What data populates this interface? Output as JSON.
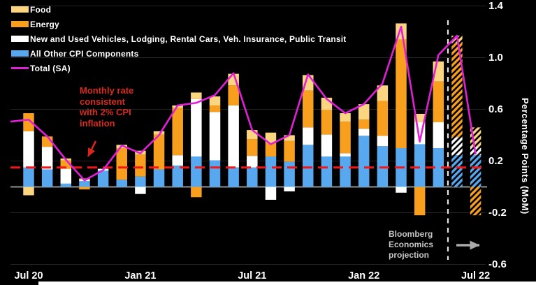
{
  "legend": {
    "items": [
      {
        "label": "Food",
        "color": "#fcd581",
        "type": "bar"
      },
      {
        "label": "Energy",
        "color": "#f8a01e",
        "type": "bar"
      },
      {
        "label": "New and Used Vehicles, Lodging, Rental Cars, Veh. Insurance, Public Transit",
        "color": "#ffffff",
        "type": "bar"
      },
      {
        "label": "All Other CPI Components",
        "color": "#58a8f0",
        "type": "bar"
      },
      {
        "label": "Total (SA)",
        "color": "#e11fd7",
        "type": "line"
      }
    ]
  },
  "annotations": {
    "target_note": {
      "text": "Monthly rate\nconsistent\nwith 2% CPI\ninflation",
      "color": "#d62b1e"
    },
    "projection_note": {
      "text": "Bloomberg\nEconomics\nprojection",
      "color": "#c6c6c6"
    }
  },
  "axis": {
    "ylabel": "Percentage Points (MoM)",
    "yticks": [
      {
        "label": "1.4",
        "value": 1.4
      },
      {
        "label": "1.0",
        "value": 1.0
      },
      {
        "label": "0.6",
        "value": 0.6
      },
      {
        "label": "0.2",
        "value": 0.2
      },
      {
        "label": "-0.2",
        "value": -0.2
      },
      {
        "label": "-0.6",
        "value": -0.6
      }
    ],
    "xticks": [
      {
        "label": "Jul 20",
        "month_index": 0
      },
      {
        "label": "Jan 21",
        "month_index": 6
      },
      {
        "label": "Jul 21",
        "month_index": 12
      },
      {
        "label": "Jan 22",
        "month_index": 18
      },
      {
        "label": "Jul 22",
        "month_index": 24
      }
    ]
  },
  "chart_data": {
    "type": "bar",
    "subtype": "stacked-bars-with-total-line",
    "ylabel": "Percentage Points (MoM)",
    "ylim": [
      -0.6,
      1.4
    ],
    "months": [
      "Jul 20",
      "Aug 20",
      "Sep 20",
      "Oct 20",
      "Nov 20",
      "Dec 20",
      "Jan 21",
      "Feb 21",
      "Mar 21",
      "Apr 21",
      "May 21",
      "Jun 21",
      "Jul 21",
      "Aug 21",
      "Sep 21",
      "Oct 21",
      "Nov 21",
      "Dec 21",
      "Jan 22",
      "Feb 22",
      "Mar 22",
      "Apr 22",
      "May 22",
      "Jun 22",
      "Jul 22"
    ],
    "series": [
      {
        "name": "All Other CPI Components",
        "color": "#58a8f0",
        "values": [
          0.15,
          0.135,
          0.025,
          0.045,
          0.125,
          0.055,
          0.08,
          0.135,
          0.165,
          0.235,
          0.205,
          0.15,
          0.15,
          0.235,
          0.195,
          0.325,
          0.235,
          0.235,
          0.395,
          0.315,
          0.3,
          0.33,
          0.3,
          0.245,
          0.245
        ]
      },
      {
        "name": "New and Used Vehicles, Lodging, Rental Cars, Veh. Insurance, Public Transit",
        "color": "#ffffff",
        "values": [
          0.28,
          0.175,
          0.115,
          0.01,
          0.015,
          0,
          -0.055,
          0,
          0.08,
          0.445,
          0.375,
          0.48,
          0.09,
          -0.1,
          -0.035,
          0.135,
          0.17,
          0.025,
          0.055,
          0.08,
          -0.045,
          0.17,
          0.2,
          0.14,
          0.065
        ]
      },
      {
        "name": "Energy",
        "color": "#f8a01e",
        "values": [
          0.14,
          0.08,
          0.065,
          -0.02,
          0,
          0.245,
          0.17,
          0.27,
          0.365,
          -0.08,
          0.05,
          0.155,
          0.13,
          0.105,
          0.16,
          0.285,
          0.19,
          0.245,
          0.07,
          0.27,
          0.84,
          -0.22,
          0.315,
          0.725,
          -0.22
        ]
      },
      {
        "name": "Food",
        "color": "#fcd581",
        "values": [
          -0.065,
          0,
          0.015,
          0.01,
          0,
          0.025,
          0.03,
          0.025,
          0.02,
          0.05,
          0.07,
          0.09,
          0.07,
          0.08,
          0.045,
          0.12,
          0.095,
          0.065,
          0.12,
          0.12,
          0.125,
          0.065,
          0.155,
          0.06,
          0.15
        ]
      }
    ],
    "line": {
      "name": "Total (SA)",
      "color": "#e11fd7",
      "values": [
        0.52,
        0.39,
        0.21,
        0.05,
        0.13,
        0.32,
        0.26,
        0.4,
        0.63,
        0.65,
        0.71,
        0.88,
        0.44,
        0.33,
        0.4,
        0.87,
        0.68,
        0.57,
        0.64,
        0.8,
        1.24,
        0.35,
        1.02,
        1.17,
        0.25
      ]
    },
    "reference_line": {
      "value": 0.15,
      "color": "#f31616",
      "label": "Monthly rate consistent with 2% CPI inflation"
    },
    "projection": {
      "month_indices": [
        23,
        24
      ],
      "separator_after_month_index": 22,
      "note": "Bloomberg Economics projection"
    },
    "grid": true,
    "legend_position": "top-left"
  }
}
